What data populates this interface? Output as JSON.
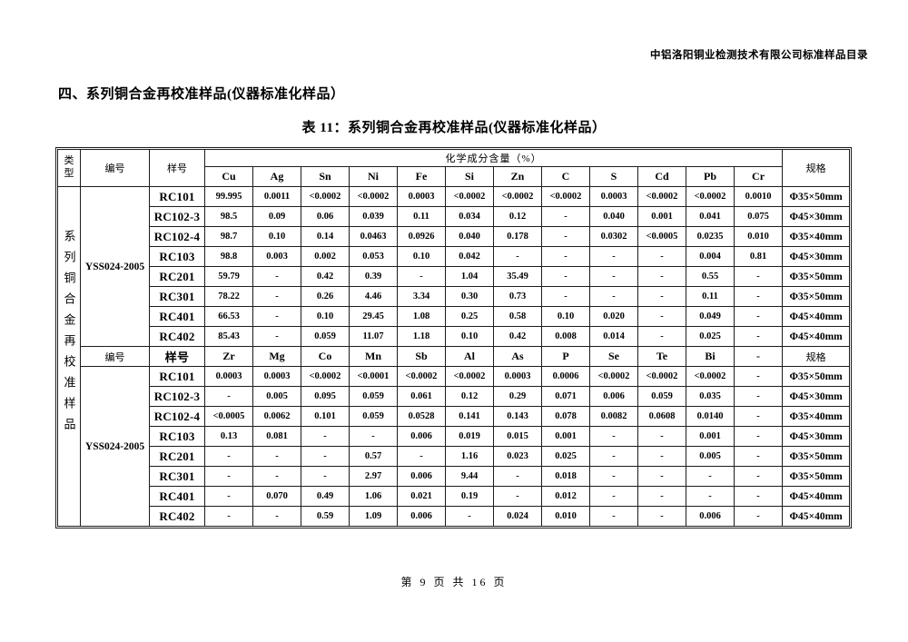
{
  "page": {
    "doc_header": "中铝洛阳铜业检测技术有限公司标准样品目录",
    "section_heading": "四、系列铜合金再校准样品(仪器标准化样品）",
    "table_title": "表 11：系列铜合金再校准样品(仪器标准化样品）",
    "footer": "第 9 页 共 16 页"
  },
  "table": {
    "headers": {
      "type": "类型",
      "code": "编号",
      "sample": "样号",
      "composition": "化学成分含量（%）",
      "spec": "规格"
    },
    "type_vertical_label": "系列铜合金再校准样品",
    "sections": [
      {
        "code": "YSS024-2005",
        "elements": [
          "Cu",
          "Ag",
          "Sn",
          "Ni",
          "Fe",
          "Si",
          "Zn",
          "C",
          "S",
          "Cd",
          "Pb",
          "Cr"
        ],
        "rows": [
          {
            "id": "RC101",
            "values": [
              "99.995",
              "0.0011",
              "<0.0002",
              "<0.0002",
              "0.0003",
              "<0.0002",
              "<0.0002",
              "<0.0002",
              "0.0003",
              "<0.0002",
              "<0.0002",
              "0.0010"
            ],
            "spec": "Φ35×50mm"
          },
          {
            "id": "RC102-3",
            "values": [
              "98.5",
              "0.09",
              "0.06",
              "0.039",
              "0.11",
              "0.034",
              "0.12",
              "-",
              "0.040",
              "0.001",
              "0.041",
              "0.075"
            ],
            "spec": "Φ45×30mm"
          },
          {
            "id": "RC102-4",
            "values": [
              "98.7",
              "0.10",
              "0.14",
              "0.0463",
              "0.0926",
              "0.040",
              "0.178",
              "-",
              "0.0302",
              "<0.0005",
              "0.0235",
              "0.010"
            ],
            "spec": "Φ35×40mm"
          },
          {
            "id": "RC103",
            "values": [
              "98.8",
              "0.003",
              "0.002",
              "0.053",
              "0.10",
              "0.042",
              "-",
              "-",
              "-",
              "-",
              "0.004",
              "0.81"
            ],
            "spec": "Φ45×30mm"
          },
          {
            "id": "RC201",
            "values": [
              "59.79",
              "-",
              "0.42",
              "0.39",
              "-",
              "1.04",
              "35.49",
              "-",
              "-",
              "-",
              "0.55",
              "-"
            ],
            "spec": "Φ35×50mm"
          },
          {
            "id": "RC301",
            "values": [
              "78.22",
              "-",
              "0.26",
              "4.46",
              "3.34",
              "0.30",
              "0.73",
              "-",
              "-",
              "-",
              "0.11",
              "-"
            ],
            "spec": "Φ35×50mm"
          },
          {
            "id": "RC401",
            "values": [
              "66.53",
              "-",
              "0.10",
              "29.45",
              "1.08",
              "0.25",
              "0.58",
              "0.10",
              "0.020",
              "-",
              "0.049",
              "-"
            ],
            "spec": "Φ45×40mm"
          },
          {
            "id": "RC402",
            "values": [
              "85.43",
              "-",
              "0.059",
              "11.07",
              "1.18",
              "0.10",
              "0.42",
              "0.008",
              "0.014",
              "-",
              "0.025",
              "-"
            ],
            "spec": "Φ45×40mm"
          }
        ]
      },
      {
        "code": "YSS024-2005",
        "divider": {
          "code": "编号",
          "sample": "样号",
          "spec": "规格"
        },
        "elements": [
          "Zr",
          "Mg",
          "Co",
          "Mn",
          "Sb",
          "Al",
          "As",
          "P",
          "Se",
          "Te",
          "Bi",
          "-"
        ],
        "rows": [
          {
            "id": "RC101",
            "values": [
              "0.0003",
              "0.0003",
              "<0.0002",
              "<0.0001",
              "<0.0002",
              "<0.0002",
              "0.0003",
              "0.0006",
              "<0.0002",
              "<0.0002",
              "<0.0002",
              "-"
            ],
            "spec": "Φ35×50mm"
          },
          {
            "id": "RC102-3",
            "values": [
              "-",
              "0.005",
              "0.095",
              "0.059",
              "0.061",
              "0.12",
              "0.29",
              "0.071",
              "0.006",
              "0.059",
              "0.035",
              "-"
            ],
            "spec": "Φ45×30mm"
          },
          {
            "id": "RC102-4",
            "values": [
              "<0.0005",
              "0.0062",
              "0.101",
              "0.059",
              "0.0528",
              "0.141",
              "0.143",
              "0.078",
              "0.0082",
              "0.0608",
              "0.0140",
              "-"
            ],
            "spec": "Φ35×40mm"
          },
          {
            "id": "RC103",
            "values": [
              "0.13",
              "0.081",
              "-",
              "-",
              "0.006",
              "0.019",
              "0.015",
              "0.001",
              "-",
              "-",
              "0.001",
              "-"
            ],
            "spec": "Φ45×30mm"
          },
          {
            "id": "RC201",
            "values": [
              "-",
              "-",
              "-",
              "0.57",
              "-",
              "1.16",
              "0.023",
              "0.025",
              "-",
              "-",
              "0.005",
              "-"
            ],
            "spec": "Φ35×50mm"
          },
          {
            "id": "RC301",
            "values": [
              "-",
              "-",
              "-",
              "2.97",
              "0.006",
              "9.44",
              "-",
              "0.018",
              "-",
              "-",
              "-",
              "-"
            ],
            "spec": "Φ35×50mm"
          },
          {
            "id": "RC401",
            "values": [
              "-",
              "0.070",
              "0.49",
              "1.06",
              "0.021",
              "0.19",
              "-",
              "0.012",
              "-",
              "-",
              "-",
              "-"
            ],
            "spec": "Φ45×40mm"
          },
          {
            "id": "RC402",
            "values": [
              "-",
              "-",
              "0.59",
              "1.09",
              "0.006",
              "-",
              "0.024",
              "0.010",
              "-",
              "-",
              "0.006",
              "-"
            ],
            "spec": "Φ45×40mm"
          }
        ]
      }
    ]
  }
}
